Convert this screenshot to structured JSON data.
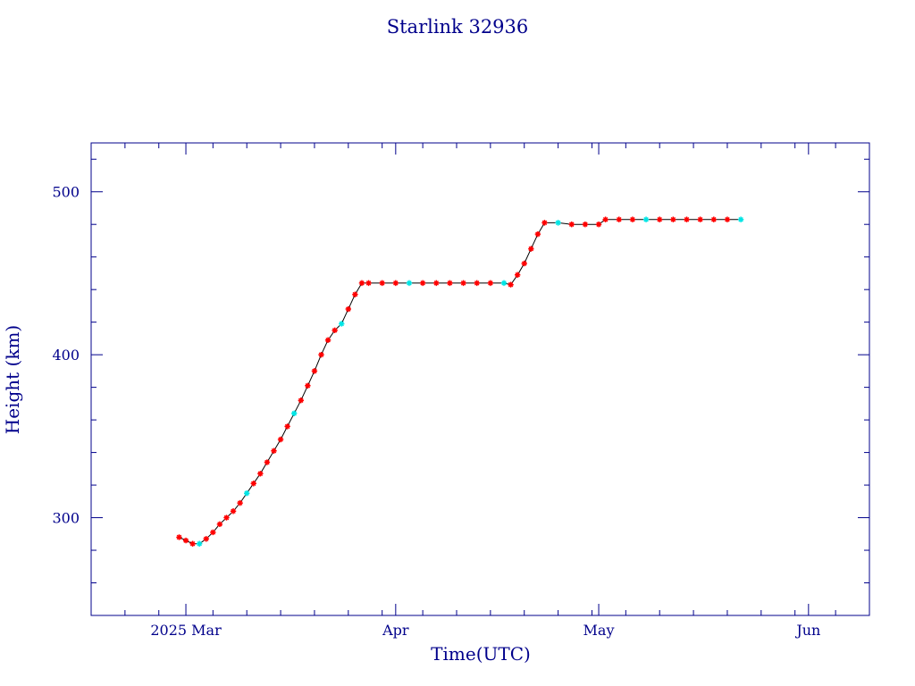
{
  "chart_data": {
    "type": "scatter",
    "title": "Starlink 32936",
    "xlabel": "Time(UTC)",
    "ylabel": "Height (km)",
    "x_ticks": [
      {
        "date": "2025-03-01",
        "label": "2025 Mar"
      },
      {
        "date": "2025-04-01",
        "label": "Apr"
      },
      {
        "date": "2025-05-01",
        "label": "May"
      },
      {
        "date": "2025-06-01",
        "label": "Jun"
      }
    ],
    "y_ticks": [
      300,
      400,
      500
    ],
    "xlim": [
      "2025-02-15",
      "2025-06-10"
    ],
    "ylim": [
      240,
      530
    ],
    "grid": false,
    "colors": {
      "axes": "#00008b",
      "line": "#000000",
      "marker": "#ff0000",
      "marker_alt": "#00e5e5"
    },
    "series": [
      {
        "points": [
          [
            "2025-02-28",
            288
          ],
          [
            "2025-03-01",
            286
          ],
          [
            "2025-03-02",
            284
          ],
          [
            "2025-03-03",
            284
          ],
          [
            "2025-03-04",
            287
          ],
          [
            "2025-03-05",
            291
          ],
          [
            "2025-03-06",
            296
          ],
          [
            "2025-03-07",
            300
          ],
          [
            "2025-03-08",
            304
          ],
          [
            "2025-03-09",
            309
          ],
          [
            "2025-03-10",
            315
          ],
          [
            "2025-03-11",
            321
          ],
          [
            "2025-03-12",
            327
          ],
          [
            "2025-03-13",
            334
          ],
          [
            "2025-03-14",
            341
          ],
          [
            "2025-03-15",
            348
          ],
          [
            "2025-03-16",
            356
          ],
          [
            "2025-03-17",
            364
          ],
          [
            "2025-03-18",
            372
          ],
          [
            "2025-03-19",
            381
          ],
          [
            "2025-03-20",
            390
          ],
          [
            "2025-03-21",
            400
          ],
          [
            "2025-03-22",
            409
          ],
          [
            "2025-03-23",
            415
          ],
          [
            "2025-03-24",
            419
          ],
          [
            "2025-03-25",
            428
          ],
          [
            "2025-03-26",
            437
          ],
          [
            "2025-03-27",
            444
          ],
          [
            "2025-03-28",
            444
          ],
          [
            "2025-03-30",
            444
          ],
          [
            "2025-04-01",
            444
          ],
          [
            "2025-04-03",
            444
          ],
          [
            "2025-04-05",
            444
          ],
          [
            "2025-04-07",
            444
          ],
          [
            "2025-04-09",
            444
          ],
          [
            "2025-04-11",
            444
          ],
          [
            "2025-04-13",
            444
          ],
          [
            "2025-04-15",
            444
          ],
          [
            "2025-04-17",
            444
          ],
          [
            "2025-04-18",
            443
          ],
          [
            "2025-04-19",
            449
          ],
          [
            "2025-04-20",
            456
          ],
          [
            "2025-04-21",
            465
          ],
          [
            "2025-04-22",
            474
          ],
          [
            "2025-04-23",
            481
          ],
          [
            "2025-04-25",
            481
          ],
          [
            "2025-04-27",
            480
          ],
          [
            "2025-04-29",
            480
          ],
          [
            "2025-05-01",
            480
          ],
          [
            "2025-05-02",
            483
          ],
          [
            "2025-05-04",
            483
          ],
          [
            "2025-05-06",
            483
          ],
          [
            "2025-05-08",
            483
          ],
          [
            "2025-05-10",
            483
          ],
          [
            "2025-05-12",
            483
          ],
          [
            "2025-05-14",
            483
          ],
          [
            "2025-05-16",
            483
          ],
          [
            "2025-05-18",
            483
          ],
          [
            "2025-05-20",
            483
          ],
          [
            "2025-05-22",
            483
          ]
        ]
      }
    ]
  }
}
